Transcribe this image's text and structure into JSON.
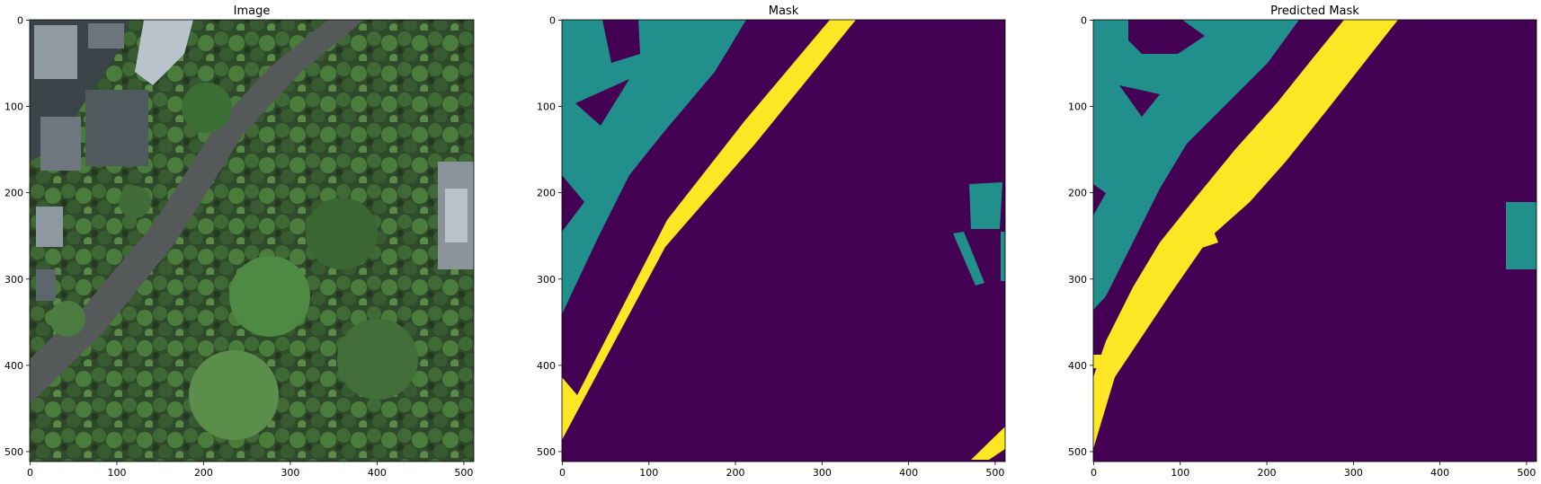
{
  "colors": {
    "background": "#440154",
    "class_1": "#21908d",
    "class_2": "#fde725",
    "axis": "#000000"
  },
  "chart_data": [
    {
      "type": "heatmap",
      "title": "Image",
      "content": "aerial-photo",
      "xlim": [
        0,
        511
      ],
      "ylim": [
        511,
        0
      ],
      "xticks": [
        0,
        100,
        200,
        300,
        400,
        500
      ],
      "yticks": [
        0,
        100,
        200,
        300,
        400,
        500
      ],
      "xlabel": "",
      "ylabel": ""
    },
    {
      "type": "heatmap",
      "title": "Mask",
      "content": "ground-truth-mask",
      "xlim": [
        0,
        511
      ],
      "ylim": [
        511,
        0
      ],
      "xticks": [
        0,
        100,
        200,
        300,
        400,
        500
      ],
      "yticks": [
        0,
        100,
        200,
        300,
        400,
        500
      ],
      "xlabel": "",
      "ylabel": ""
    },
    {
      "type": "heatmap",
      "title": "Predicted Mask",
      "content": "predicted-mask",
      "xlim": [
        0,
        511
      ],
      "ylim": [
        511,
        0
      ],
      "xticks": [
        0,
        100,
        200,
        300,
        400,
        500
      ],
      "yticks": [
        0,
        100,
        200,
        300,
        400,
        500
      ],
      "xlabel": "",
      "ylabel": ""
    }
  ]
}
